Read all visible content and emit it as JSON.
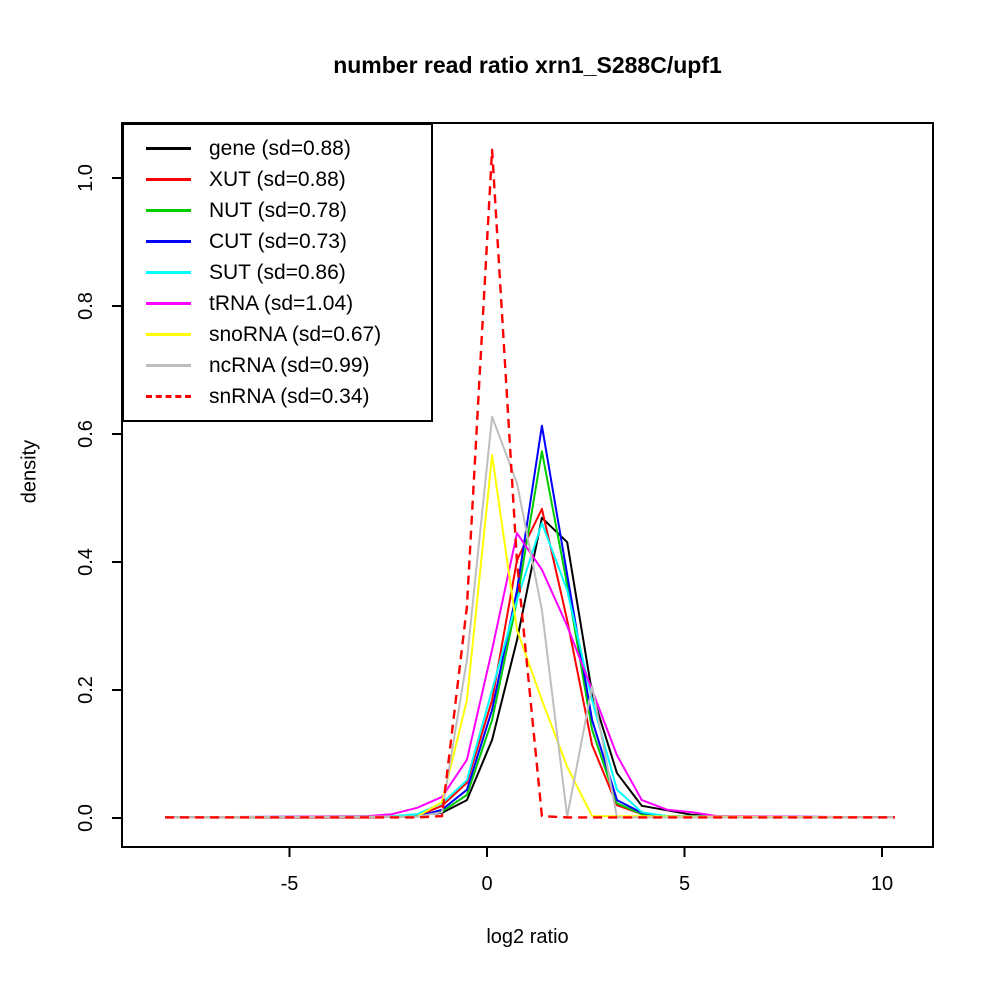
{
  "title": "number read ratio xrn1_S288C/upf1",
  "chart_data": {
    "type": "line",
    "title": "number read ratio xrn1_S288C/upf1",
    "xlabel": "log2 ratio",
    "ylabel": "density",
    "xlim": [
      -9.2,
      11.3
    ],
    "ylim": [
      -0.045,
      1.086
    ],
    "grid": false,
    "legend_position": "topleft",
    "x_ticks": [
      -5,
      0,
      5,
      10
    ],
    "x_tick_labels": [
      "-5",
      "0",
      "5",
      "10"
    ],
    "y_ticks": [
      0.0,
      0.2,
      0.4,
      0.6,
      0.8,
      1.0
    ],
    "y_tick_labels": [
      "0.0",
      "0.2",
      "0.4",
      "0.6",
      "0.8",
      "1.0"
    ],
    "series": [
      {
        "name": "gene",
        "sd": 0.88,
        "legend_label": "gene (sd=0.88)",
        "color": "#000000",
        "dashed": false,
        "points": [
          [
            -8.15,
            0.001
          ],
          [
            -3.0,
            0.001
          ],
          [
            -1.77,
            0.004
          ],
          [
            -1.14,
            0.008
          ],
          [
            -0.51,
            0.028
          ],
          [
            0.13,
            0.122
          ],
          [
            0.76,
            0.278
          ],
          [
            1.39,
            0.469
          ],
          [
            2.03,
            0.431
          ],
          [
            2.66,
            0.195
          ],
          [
            3.29,
            0.07
          ],
          [
            3.92,
            0.019
          ],
          [
            4.56,
            0.012
          ],
          [
            5.19,
            0.005
          ],
          [
            5.82,
            0.002
          ],
          [
            10.33,
            0.001
          ]
        ]
      },
      {
        "name": "XUT",
        "sd": 0.88,
        "legend_label": "XUT (sd=0.88)",
        "color": "#FF0000",
        "dashed": false,
        "points": [
          [
            -8.15,
            0.001
          ],
          [
            -3.0,
            0.001
          ],
          [
            -1.77,
            0.003
          ],
          [
            -1.14,
            0.019
          ],
          [
            -0.51,
            0.055
          ],
          [
            0.13,
            0.184
          ],
          [
            0.76,
            0.403
          ],
          [
            1.39,
            0.483
          ],
          [
            2.03,
            0.309
          ],
          [
            2.66,
            0.114
          ],
          [
            3.29,
            0.02
          ],
          [
            3.92,
            0.006
          ],
          [
            4.56,
            0.003
          ],
          [
            5.19,
            0.002
          ],
          [
            10.33,
            0.001
          ]
        ]
      },
      {
        "name": "NUT",
        "sd": 0.78,
        "legend_label": "NUT (sd=0.78)",
        "color": "#00CC00",
        "dashed": false,
        "points": [
          [
            -8.15,
            0.001
          ],
          [
            -1.77,
            0.002
          ],
          [
            -1.14,
            0.01
          ],
          [
            -0.51,
            0.036
          ],
          [
            0.13,
            0.153
          ],
          [
            0.76,
            0.34
          ],
          [
            1.39,
            0.573
          ],
          [
            2.03,
            0.364
          ],
          [
            2.66,
            0.138
          ],
          [
            3.29,
            0.023
          ],
          [
            3.92,
            0.006
          ],
          [
            4.56,
            0.002
          ],
          [
            10.33,
            0.001
          ]
        ]
      },
      {
        "name": "CUT",
        "sd": 0.73,
        "legend_label": "CUT (sd=0.73)",
        "color": "#0000FF",
        "dashed": false,
        "points": [
          [
            -8.15,
            0.001
          ],
          [
            -1.77,
            0.002
          ],
          [
            -1.14,
            0.013
          ],
          [
            -0.51,
            0.044
          ],
          [
            0.13,
            0.169
          ],
          [
            0.76,
            0.356
          ],
          [
            1.39,
            0.613
          ],
          [
            2.03,
            0.38
          ],
          [
            2.66,
            0.153
          ],
          [
            3.29,
            0.028
          ],
          [
            3.92,
            0.008
          ],
          [
            4.56,
            0.003
          ],
          [
            10.33,
            0.001
          ]
        ]
      },
      {
        "name": "SUT",
        "sd": 0.86,
        "legend_label": "SUT (sd=0.86)",
        "color": "#00FFFF",
        "dashed": false,
        "points": [
          [
            -8.15,
            0.001
          ],
          [
            -2.41,
            0.003
          ],
          [
            -1.77,
            0.006
          ],
          [
            -1.14,
            0.023
          ],
          [
            -0.51,
            0.059
          ],
          [
            0.13,
            0.2
          ],
          [
            0.76,
            0.341
          ],
          [
            1.39,
            0.461
          ],
          [
            2.03,
            0.356
          ],
          [
            2.66,
            0.184
          ],
          [
            3.29,
            0.044
          ],
          [
            3.92,
            0.009
          ],
          [
            4.56,
            0.003
          ],
          [
            10.33,
            0.001
          ]
        ]
      },
      {
        "name": "tRNA",
        "sd": 1.04,
        "legend_label": "tRNA (sd=1.04)",
        "color": "#FF00FF",
        "dashed": false,
        "points": [
          [
            -8.15,
            0.001
          ],
          [
            -3.04,
            0.003
          ],
          [
            -2.41,
            0.006
          ],
          [
            -1.77,
            0.016
          ],
          [
            -1.14,
            0.033
          ],
          [
            -0.51,
            0.091
          ],
          [
            0.13,
            0.263
          ],
          [
            0.76,
            0.445
          ],
          [
            1.39,
            0.388
          ],
          [
            2.03,
            0.3
          ],
          [
            2.66,
            0.2
          ],
          [
            3.29,
            0.098
          ],
          [
            3.92,
            0.028
          ],
          [
            4.56,
            0.013
          ],
          [
            5.19,
            0.009
          ],
          [
            5.82,
            0.003
          ],
          [
            10.33,
            0.001
          ]
        ]
      },
      {
        "name": "snoRNA",
        "sd": 0.67,
        "legend_label": "snoRNA (sd=0.67)",
        "color": "#FFFF00",
        "dashed": false,
        "points": [
          [
            -8.15,
            0.001
          ],
          [
            -1.77,
            0.002
          ],
          [
            -1.14,
            0.025
          ],
          [
            -0.51,
            0.184
          ],
          [
            0.13,
            0.567
          ],
          [
            0.76,
            0.294
          ],
          [
            1.39,
            0.184
          ],
          [
            2.03,
            0.08
          ],
          [
            2.66,
            0.003
          ],
          [
            10.33,
            0.001
          ]
        ]
      },
      {
        "name": "ncRNA",
        "sd": 0.99,
        "legend_label": "ncRNA (sd=0.99)",
        "color": "#BEBEBE",
        "dashed": false,
        "points": [
          [
            -8.15,
            0.001
          ],
          [
            -1.77,
            0.002
          ],
          [
            -1.14,
            0.009
          ],
          [
            -0.51,
            0.247
          ],
          [
            0.13,
            0.627
          ],
          [
            0.76,
            0.523
          ],
          [
            1.39,
            0.325
          ],
          [
            2.03,
            0.002
          ],
          [
            2.66,
            0.206
          ],
          [
            3.29,
            0.001
          ],
          [
            10.33,
            0.001
          ]
        ]
      },
      {
        "name": "snRNA",
        "sd": 0.34,
        "legend_label": "snRNA (sd=0.34)",
        "color": "#FF0000",
        "dashed": true,
        "points": [
          [
            -8.15,
            0.001
          ],
          [
            -1.77,
            0.001
          ],
          [
            -1.14,
            0.003
          ],
          [
            -0.51,
            0.33
          ],
          [
            0.13,
            1.044
          ],
          [
            0.76,
            0.4
          ],
          [
            1.39,
            0.003
          ],
          [
            2.03,
            0.001
          ],
          [
            10.33,
            0.001
          ]
        ]
      }
    ]
  }
}
